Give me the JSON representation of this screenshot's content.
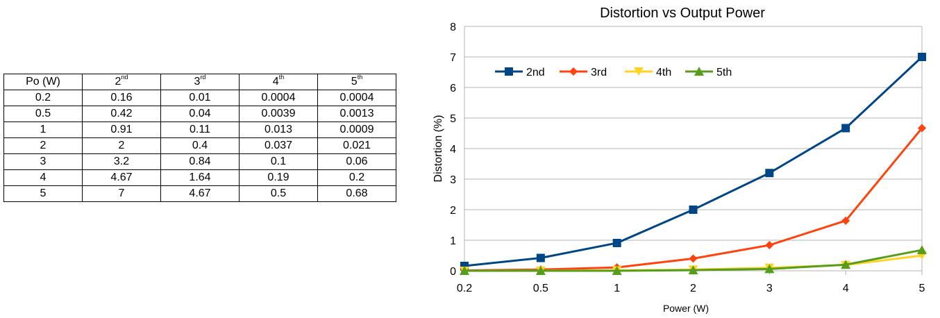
{
  "table": {
    "header_first": "Po (W)",
    "harmonic_headers": [
      {
        "num": "2",
        "sup": "nd"
      },
      {
        "num": "3",
        "sup": "rd"
      },
      {
        "num": "4",
        "sup": "th"
      },
      {
        "num": "5",
        "sup": "th"
      }
    ],
    "rows": [
      [
        "0.2",
        "0.16",
        "0.01",
        "0.0004",
        "0.0004"
      ],
      [
        "0.5",
        "0.42",
        "0.04",
        "0.0039",
        "0.0013"
      ],
      [
        "1",
        "0.91",
        "0.11",
        "0.013",
        "0.0009"
      ],
      [
        "2",
        "2",
        "0.4",
        "0.037",
        "0.021"
      ],
      [
        "3",
        "3.2",
        "0.84",
        "0.1",
        "0.06"
      ],
      [
        "4",
        "4.67",
        "1.64",
        "0.19",
        "0.2"
      ],
      [
        "5",
        "7",
        "4.67",
        "0.5",
        "0.68"
      ]
    ]
  },
  "chart_data": {
    "type": "line",
    "title": "Distortion vs Output Power",
    "xlabel": "Power (W)",
    "ylabel": "Distortion (%)",
    "categories": [
      "0.2",
      "0.5",
      "1",
      "2",
      "3",
      "4",
      "5"
    ],
    "ylim": [
      0,
      8
    ],
    "yticks": [
      "0",
      "1",
      "2",
      "3",
      "4",
      "5",
      "6",
      "7",
      "8"
    ],
    "grid": "horizontal",
    "legend_position": "top-left inside",
    "series": [
      {
        "name": "2nd",
        "values": [
          0.16,
          0.42,
          0.91,
          2,
          3.2,
          4.67,
          7
        ],
        "color": "#004586",
        "marker": "square"
      },
      {
        "name": "3rd",
        "values": [
          0.01,
          0.04,
          0.11,
          0.4,
          0.84,
          1.64,
          4.67
        ],
        "color": "#ff420e",
        "marker": "diamond"
      },
      {
        "name": "4th",
        "values": [
          0.0004,
          0.0039,
          0.013,
          0.037,
          0.1,
          0.19,
          0.5
        ],
        "color": "#ffd320",
        "marker": "triangle-down"
      },
      {
        "name": "5th",
        "values": [
          0.0004,
          0.0013,
          0.0009,
          0.021,
          0.06,
          0.2,
          0.68
        ],
        "color": "#579d1c",
        "marker": "triangle-up"
      }
    ]
  }
}
